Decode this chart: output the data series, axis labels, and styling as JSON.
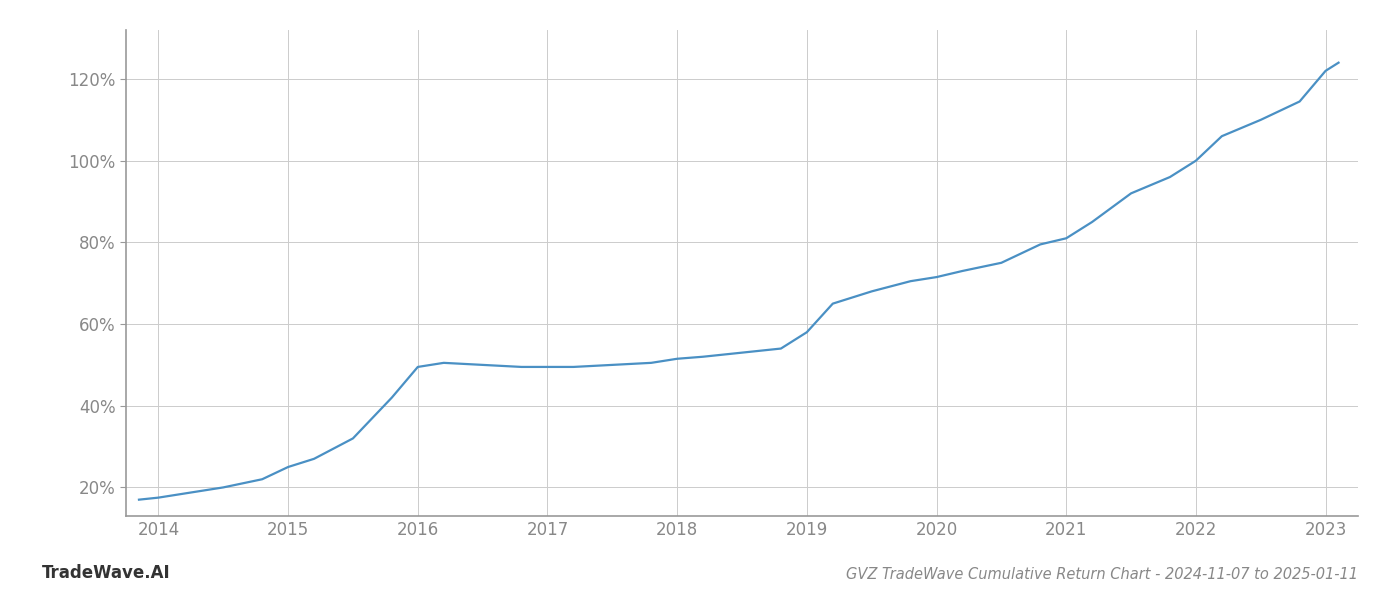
{
  "title": "GVZ TradeWave Cumulative Return Chart - 2024-11-07 to 2025-01-11",
  "watermark": "TradeWave.AI",
  "line_color": "#4a90c4",
  "background_color": "#ffffff",
  "grid_color": "#cccccc",
  "x_values": [
    2013.85,
    2014.0,
    2014.2,
    2014.5,
    2014.8,
    2015.0,
    2015.2,
    2015.5,
    2015.8,
    2016.0,
    2016.2,
    2016.5,
    2016.8,
    2017.0,
    2017.2,
    2017.5,
    2017.8,
    2018.0,
    2018.2,
    2018.5,
    2018.8,
    2019.0,
    2019.2,
    2019.5,
    2019.8,
    2020.0,
    2020.2,
    2020.5,
    2020.8,
    2021.0,
    2021.2,
    2021.5,
    2021.8,
    2022.0,
    2022.2,
    2022.5,
    2022.8,
    2023.0,
    2023.1
  ],
  "y_values": [
    17.0,
    17.5,
    18.5,
    20.0,
    22.0,
    25.0,
    27.0,
    32.0,
    42.0,
    49.5,
    50.5,
    50.0,
    49.5,
    49.5,
    49.5,
    50.0,
    50.5,
    51.5,
    52.0,
    53.0,
    54.0,
    58.0,
    65.0,
    68.0,
    70.5,
    71.5,
    73.0,
    75.0,
    79.5,
    81.0,
    85.0,
    92.0,
    96.0,
    100.0,
    106.0,
    110.0,
    114.5,
    122.0,
    124.0
  ],
  "xlim": [
    2013.75,
    2023.25
  ],
  "ylim": [
    13,
    132
  ],
  "yticks": [
    20,
    40,
    60,
    80,
    100,
    120
  ],
  "xticks": [
    2014,
    2015,
    2016,
    2017,
    2018,
    2019,
    2020,
    2021,
    2022,
    2023
  ],
  "line_width": 1.6,
  "title_fontsize": 10.5,
  "tick_fontsize": 12,
  "watermark_fontsize": 12
}
